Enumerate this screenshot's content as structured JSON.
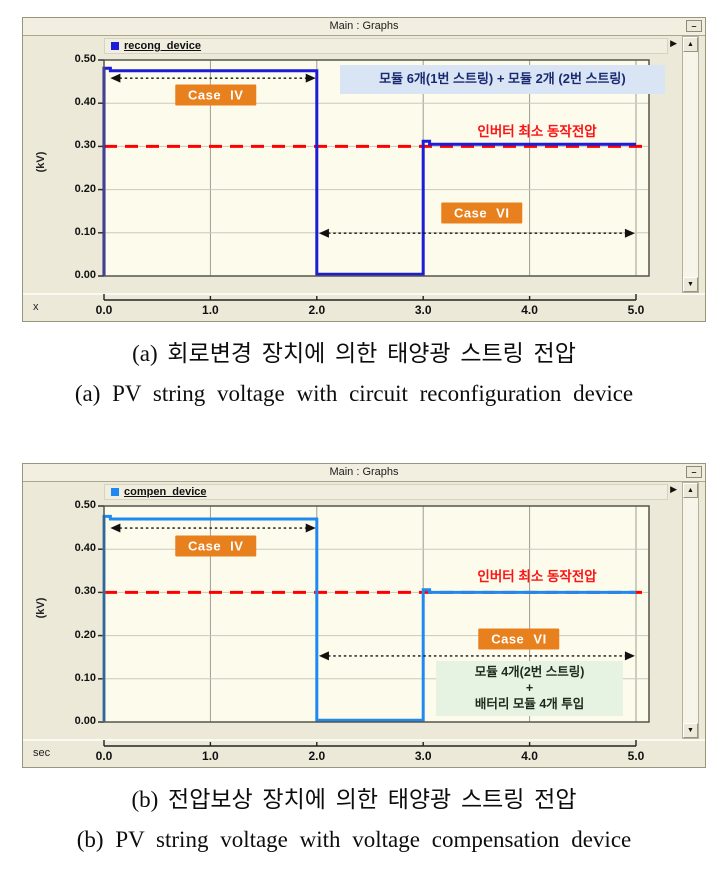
{
  "ui": {
    "minimize_glyph": "–",
    "scroll_up_glyph": "▲",
    "scroll_down_glyph": "▼",
    "pan_right_glyph": "▶"
  },
  "captions": [
    {
      "korean": "(a) 회로변경 장치에 의한 태양광 스트링 전압",
      "english": "(a) PV string voltage with circuit reconfiguration device"
    },
    {
      "korean": "(b) 전압보상 장치에 의한 태양광 스트링 전압",
      "english": "(b) PV string voltage with voltage compensation device"
    }
  ],
  "chart_data": [
    {
      "type": "line",
      "window_title": "Main : Graphs",
      "legend": "recong_device",
      "ylabel": "(kV)",
      "x_unit_label": "x",
      "xlim": [
        0,
        5
      ],
      "ylim": [
        0,
        0.5
      ],
      "xticks": [
        "0.0",
        "1.0",
        "2.0",
        "3.0",
        "4.0",
        "5.0"
      ],
      "yticks": [
        "0.00",
        "0.10",
        "0.20",
        "0.30",
        "0.40",
        "0.50"
      ],
      "grid": true,
      "plot_bg": "#fdfbec",
      "series": [
        {
          "name": "recong_device",
          "color": "#1d1dd8",
          "points": [
            [
              0,
              0
            ],
            [
              0,
              0.481
            ],
            [
              0.06,
              0.481
            ],
            [
              0.06,
              0.475
            ],
            [
              2,
              0.475
            ],
            [
              2,
              0.004
            ],
            [
              3,
              0.004
            ],
            [
              3,
              0.312
            ],
            [
              3.06,
              0.312
            ],
            [
              3.06,
              0.305
            ],
            [
              5,
              0.305
            ]
          ]
        }
      ],
      "threshold": {
        "value": 0.3,
        "color": "#ff0000",
        "style": "dashed",
        "label": "인버터 최소 동작전압",
        "label_color": "#fb1414",
        "label_cx": 4.07,
        "label_cy": 0.338
      },
      "annotations": [
        {
          "kind": "arrow",
          "name": "case4-span-arrow",
          "x1": 0.06,
          "x2": 1.99,
          "y": 0.458
        },
        {
          "kind": "badge",
          "name": "case4-badge",
          "label": "Case IV",
          "cx": 1.05,
          "cy": 0.418,
          "bg": "#e8801e",
          "color": "#ffffff"
        },
        {
          "kind": "arrow",
          "name": "case6-span-arrow",
          "x1": 2.02,
          "x2": 4.99,
          "y": 0.099
        },
        {
          "kind": "badge",
          "name": "case6-badge",
          "label": "Case VI",
          "cx": 3.55,
          "cy": 0.146,
          "bg": "#e8801e",
          "color": "#ffffff"
        },
        {
          "kind": "box",
          "name": "string-config-note",
          "lines": [
            "모듈 6개(1번 스트링) + 모듈 2개 (2번 스트링)"
          ],
          "x1": 2.22,
          "x2": 5.27,
          "ytop": 0.488,
          "ybot": 0.421,
          "bg": "#d9e4f5",
          "color": "#1a2a70"
        }
      ]
    },
    {
      "type": "line",
      "window_title": "Main : Graphs",
      "legend": "compen_device",
      "ylabel": "(kV)",
      "x_unit_label": "sec",
      "xlim": [
        0,
        5
      ],
      "ylim": [
        0,
        0.5
      ],
      "xticks": [
        "0.0",
        "1.0",
        "2.0",
        "3.0",
        "4.0",
        "5.0"
      ],
      "yticks": [
        "0.00",
        "0.10",
        "0.20",
        "0.30",
        "0.40",
        "0.50"
      ],
      "grid": true,
      "plot_bg": "#fdfbec",
      "series": [
        {
          "name": "compen_device",
          "color": "#1e8af0",
          "points": [
            [
              0,
              0
            ],
            [
              0,
              0.476
            ],
            [
              0.06,
              0.476
            ],
            [
              0.06,
              0.47
            ],
            [
              2,
              0.47
            ],
            [
              2,
              0.004
            ],
            [
              3,
              0.004
            ],
            [
              3,
              0.306
            ],
            [
              3.06,
              0.306
            ],
            [
              3.06,
              0.3
            ],
            [
              5,
              0.3
            ]
          ]
        }
      ],
      "threshold": {
        "value": 0.3,
        "color": "#ff0000",
        "style": "dashed",
        "label": "인버터 최소 동작전압",
        "label_color": "#fb1414",
        "label_cx": 4.07,
        "label_cy": 0.341
      },
      "annotations": [
        {
          "kind": "arrow",
          "name": "case4-span-arrow",
          "x1": 0.06,
          "x2": 1.99,
          "y": 0.449
        },
        {
          "kind": "badge",
          "name": "case4-badge",
          "label": "Case IV",
          "cx": 1.05,
          "cy": 0.408,
          "bg": "#e8801e",
          "color": "#ffffff"
        },
        {
          "kind": "arrow",
          "name": "case6-span-arrow",
          "x1": 2.02,
          "x2": 4.99,
          "y": 0.153
        },
        {
          "kind": "badge",
          "name": "case6-badge",
          "label": "Case VI",
          "cx": 3.9,
          "cy": 0.192,
          "bg": "#e8801e",
          "color": "#ffffff"
        },
        {
          "kind": "box",
          "name": "battery-config-note",
          "lines": [
            "모듈 4개(2번 스트링)",
            "+",
            "배터리 모듈 4개 투입"
          ],
          "x1": 3.12,
          "x2": 4.88,
          "ytop": 0.142,
          "ybot": 0.014,
          "bg": "#e6f2e2",
          "color": "#1d2b1d"
        }
      ]
    }
  ]
}
